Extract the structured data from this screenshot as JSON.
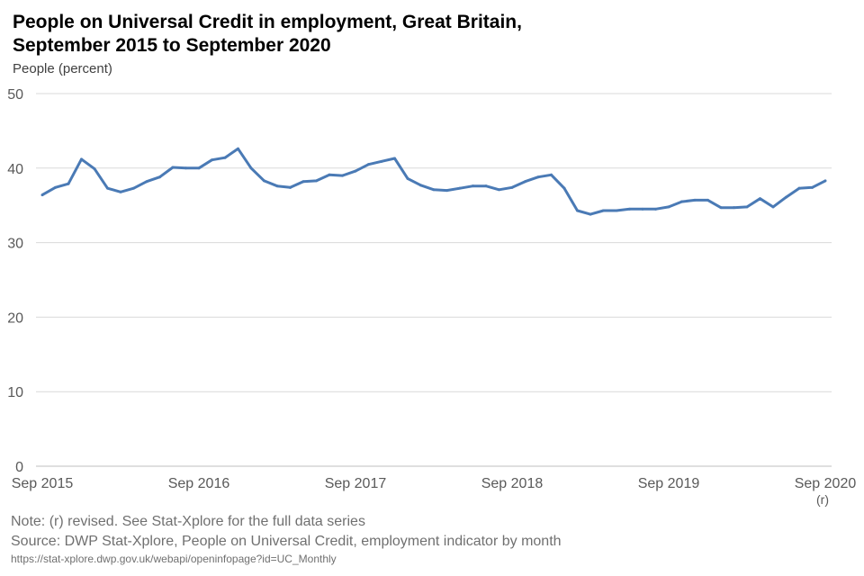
{
  "chart_data": {
    "type": "line",
    "title": "People on Universal Credit in employment, Great Britain,\nSeptember 2015 to September 2020",
    "ylabel": "People (percent)",
    "xlabel": "",
    "ylim": [
      0,
      50
    ],
    "yticks": [
      "0",
      "10",
      "20",
      "30",
      "40",
      "50"
    ],
    "xticks": [
      "Sep 2015",
      "Sep 2016",
      "Sep 2017",
      "Sep 2018",
      "Sep 2019",
      "Sep 2020"
    ],
    "xtick_note": "(r)",
    "grid": true,
    "line_color": "#4a7ab5",
    "start": "Sep 2015",
    "frequency": "monthly",
    "values": [
      36.4,
      37.4,
      37.9,
      41.2,
      39.9,
      37.3,
      36.8,
      37.3,
      38.2,
      38.8,
      40.1,
      40.0,
      40.0,
      41.1,
      41.4,
      42.6,
      40.0,
      38.3,
      37.6,
      37.4,
      38.2,
      38.3,
      39.1,
      39.0,
      39.6,
      40.5,
      40.9,
      41.3,
      38.6,
      37.7,
      37.1,
      37.0,
      37.3,
      37.6,
      37.6,
      37.1,
      37.4,
      38.2,
      38.8,
      39.1,
      37.3,
      34.3,
      33.8,
      34.3,
      34.3,
      34.5,
      34.5,
      34.5,
      34.8,
      35.5,
      35.7,
      35.7,
      34.7,
      34.7,
      34.8,
      35.9,
      34.8,
      36.1,
      37.3,
      37.4,
      38.3
    ]
  },
  "footer": {
    "note": "Note: (r) revised. See Stat-Xplore for the full data series",
    "source": "Source: DWP Stat-Xplore, People on Universal Credit, employment indicator by month",
    "url": "https://stat-xplore.dwp.gov.uk/webapi/openinfopage?id=UC_Monthly"
  }
}
